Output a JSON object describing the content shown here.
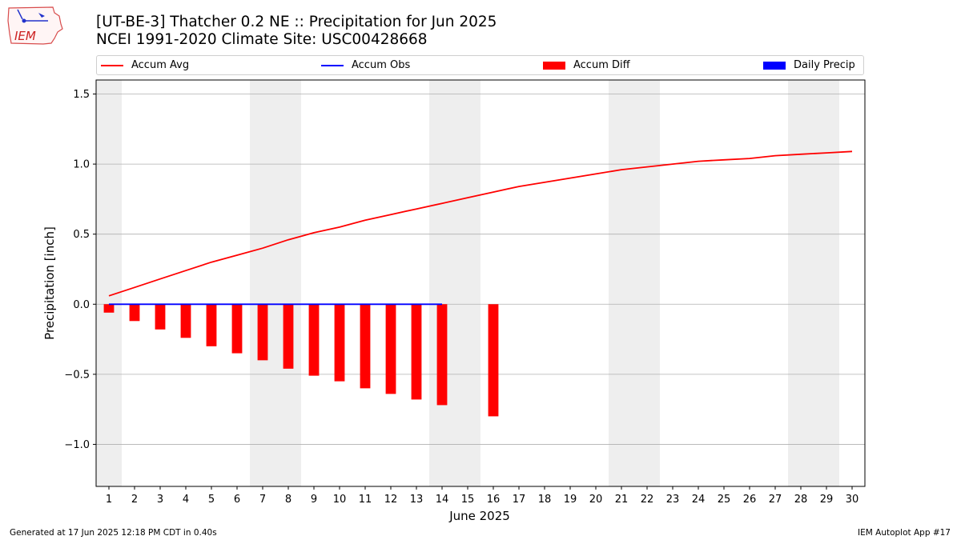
{
  "header": {
    "title": "[UT-BE-3] Thatcher 0.2 NE :: Precipitation for Jun 2025",
    "subtitle": "NCEI 1991-2020 Climate Site: USC00428668",
    "logo_text": "IEM"
  },
  "footer": {
    "generated": "Generated at 17 Jun 2025 12:18 PM CDT in 0.40s",
    "app": "IEM Autoplot App #17"
  },
  "colors": {
    "avg": "#ff0000",
    "obs": "#0000ff",
    "diff": "#ff0000",
    "daily": "#0000ff",
    "weekend": "#eeeeee",
    "grid": "#b0b0b0"
  },
  "chart_data": {
    "type": "bar",
    "title": "[UT-BE-3] Thatcher 0.2 NE :: Precipitation for Jun 2025",
    "xlabel": "June 2025",
    "ylabel": "Precipitation [inch]",
    "ylim": [
      -1.3,
      1.6
    ],
    "xlim": [
      0.5,
      30.5
    ],
    "yticks": [
      -1.0,
      -0.5,
      0.0,
      0.5,
      1.0,
      1.5
    ],
    "ytick_labels": [
      "−1.0",
      "−0.5",
      "0.0",
      "0.5",
      "1.0",
      "1.5"
    ],
    "days": [
      1,
      2,
      3,
      4,
      5,
      6,
      7,
      8,
      9,
      10,
      11,
      12,
      13,
      14,
      15,
      16,
      17,
      18,
      19,
      20,
      21,
      22,
      23,
      24,
      25,
      26,
      27,
      28,
      29,
      30
    ],
    "weekend_days": [
      1,
      7,
      8,
      14,
      15,
      21,
      22,
      28,
      29
    ],
    "grid": true,
    "legend_position": "top",
    "legend": [
      "Accum Avg",
      "Accum Obs",
      "Accum Diff",
      "Daily Precip"
    ],
    "series": [
      {
        "name": "Accum Avg",
        "kind": "line",
        "x": [
          1,
          2,
          3,
          4,
          5,
          6,
          7,
          8,
          9,
          10,
          11,
          12,
          13,
          14,
          15,
          16,
          17,
          18,
          19,
          20,
          21,
          22,
          23,
          24,
          25,
          26,
          27,
          28,
          29,
          30
        ],
        "values": [
          0.06,
          0.12,
          0.18,
          0.24,
          0.3,
          0.35,
          0.4,
          0.46,
          0.51,
          0.55,
          0.6,
          0.64,
          0.68,
          0.72,
          0.76,
          0.8,
          0.84,
          0.87,
          0.9,
          0.93,
          0.96,
          0.98,
          1.0,
          1.02,
          1.03,
          1.04,
          1.06,
          1.07,
          1.08,
          1.09
        ]
      },
      {
        "name": "Accum Obs",
        "kind": "line",
        "x": [
          1,
          2,
          3,
          4,
          5,
          6,
          7,
          8,
          9,
          10,
          11,
          12,
          13,
          14
        ],
        "values": [
          0,
          0,
          0,
          0,
          0,
          0,
          0,
          0,
          0,
          0,
          0,
          0,
          0,
          0
        ]
      },
      {
        "name": "Accum Diff",
        "kind": "bar",
        "x": [
          1,
          2,
          3,
          4,
          5,
          6,
          7,
          8,
          9,
          10,
          11,
          12,
          13,
          14,
          16
        ],
        "values": [
          -0.06,
          -0.12,
          -0.18,
          -0.24,
          -0.3,
          -0.35,
          -0.4,
          -0.46,
          -0.51,
          -0.55,
          -0.6,
          -0.64,
          -0.68,
          -0.72,
          -0.8
        ]
      },
      {
        "name": "Daily Precip",
        "kind": "bar",
        "x": [],
        "values": []
      }
    ]
  }
}
